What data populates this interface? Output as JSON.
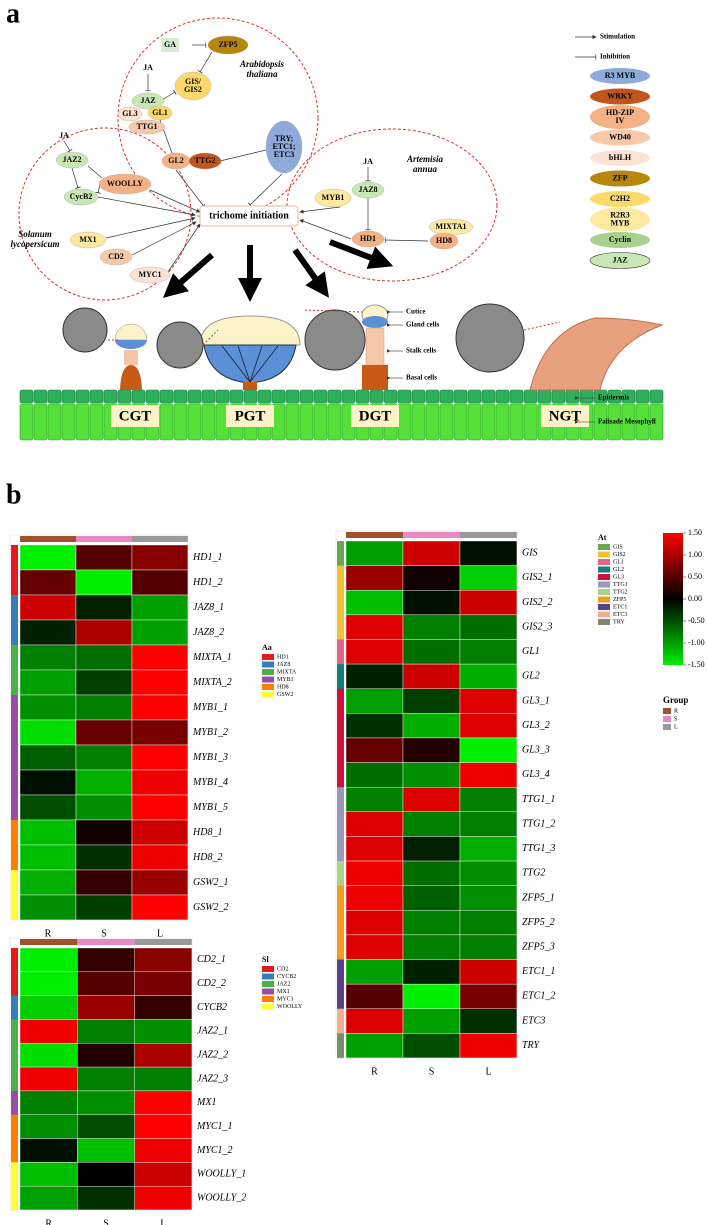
{
  "panel_a": {
    "label": "a",
    "species": [
      [
        "Arabidopsis",
        "thaliana"
      ],
      [
        "Solanum",
        "lycopersicum"
      ],
      [
        "Artemisia",
        "annua"
      ]
    ],
    "center": "trichome initiation",
    "nodes": [
      {
        "label": "GA",
        "color": "#d9ead3"
      },
      {
        "label": "ZFP5",
        "color": "#b8860b"
      },
      {
        "label": "JA",
        "color": "none"
      },
      {
        "label": [
          "GIS/",
          "GIS2"
        ],
        "color": "#fcd96a"
      },
      {
        "label": "JAZ",
        "color": "#c9e6b5"
      },
      {
        "label": "GL3",
        "color": "#fde3cf"
      },
      {
        "label": "GL1",
        "color": "#fcd96a"
      },
      {
        "label": "TTG1",
        "color": "#f7c9a8"
      },
      {
        "label": "GL2",
        "color": "#f4b183"
      },
      {
        "label": "TTG2",
        "color": "#c0561a"
      },
      {
        "label": [
          "TRY;",
          "ETC1;",
          "ETC3"
        ],
        "color": "#8eaadb"
      },
      {
        "label": "JA",
        "color": "none"
      },
      {
        "label": "JAZ2",
        "color": "#c9e6b5"
      },
      {
        "label": "WOOLLY",
        "color": "#f4b183"
      },
      {
        "label": "CycB2",
        "color": "#c9e6b5"
      },
      {
        "label": "MX1",
        "color": "#fde9a0"
      },
      {
        "label": "CD2",
        "color": "#f7c9a8"
      },
      {
        "label": "MYC1",
        "color": "#fde3d6"
      },
      {
        "label": "JA",
        "color": "none"
      },
      {
        "label": "JAZ8",
        "color": "#c9e6b5"
      },
      {
        "label": "MYB1",
        "color": "#fde9a0"
      },
      {
        "label": "MIXTA1",
        "color": "#fde9a0"
      },
      {
        "label": "HD1",
        "color": "#f4b183"
      },
      {
        "label": "HD8",
        "color": "#f4b183"
      }
    ],
    "legend": {
      "arrows": [
        "Stimulation",
        "Inhibition"
      ],
      "families": [
        {
          "name": [
            "R3 MYB"
          ],
          "color": "#8eaadb"
        },
        {
          "name": [
            "WRKY"
          ],
          "color": "#c0561a"
        },
        {
          "name": [
            "HD-ZIP",
            "IV"
          ],
          "color": "#f4b183"
        },
        {
          "name": [
            "WD40"
          ],
          "color": "#f7c9a8"
        },
        {
          "name": [
            "bHLH"
          ],
          "color": "#fde3d6"
        },
        {
          "name": [
            "ZFP"
          ],
          "color": "#b8860b"
        },
        {
          "name": [
            "C2H2"
          ],
          "color": "#fcd96a"
        },
        {
          "name": [
            "R2R3",
            "MYB"
          ],
          "color": "#fde9a0"
        },
        {
          "name": [
            "Cyclin"
          ],
          "color": "#a9d18e"
        },
        {
          "name": [
            "JAZ"
          ],
          "color": "#c9e6b5"
        }
      ]
    },
    "trichome_types": [
      "CGT",
      "PGT",
      "DGT",
      "NGT"
    ],
    "structures": [
      "Cutice",
      "Gland cells",
      "Stalk cells",
      "Basal cells"
    ],
    "layers": [
      "Epidermis",
      "Palisade Mesophyll"
    ]
  },
  "panel_b": {
    "label": "b",
    "group_legend": {
      "title": "Group",
      "items": [
        {
          "name": "R",
          "color": "#a0522d"
        },
        {
          "name": "S",
          "color": "#e78ac3"
        },
        {
          "name": "L",
          "color": "#999999"
        }
      ]
    },
    "colorbar": {
      "range": [
        -1.5,
        1.5
      ],
      "ticks": [
        {
          "value": 1.5,
          "label": "1.50"
        },
        {
          "value": 1,
          "label": "1.00"
        },
        {
          "value": 0.5,
          "label": "0.50"
        },
        {
          "value": 0,
          "label": "0.00"
        },
        {
          "value": -0.5,
          "label": "-0.50"
        },
        {
          "value": -1,
          "label": "-1.00"
        },
        {
          "value": -1.5,
          "label": "-1.50"
        }
      ]
    },
    "heatmaps": [
      {
        "legend_title": "Aa",
        "columns": [
          "R",
          "S",
          "L"
        ],
        "groups": [
          {
            "name": "HD1",
            "color": "#e41a1c"
          },
          {
            "name": "JAZ8",
            "color": "#377eb8"
          },
          {
            "name": "MIXTA",
            "color": "#4daf4a"
          },
          {
            "name": "MYB1",
            "color": "#984ea3"
          },
          {
            "name": "HD8",
            "color": "#ff7f00"
          },
          {
            "name": "GSW2",
            "color": "#ffff33"
          }
        ],
        "rows": [
          {
            "label": "HD1_1",
            "group": "HD1",
            "values": [
              -1.5,
              0.5,
              0.8
            ]
          },
          {
            "label": "HD1_2",
            "group": "HD1",
            "values": [
              0.6,
              -1.5,
              0.5
            ]
          },
          {
            "label": "JAZ8_1",
            "group": "JAZ8",
            "values": [
              1.2,
              -0.2,
              -1.0
            ]
          },
          {
            "label": "JAZ8_2",
            "group": "JAZ8",
            "values": [
              -0.2,
              1.0,
              -1.0
            ]
          },
          {
            "label": "MIXTA_1",
            "group": "MIXTA",
            "values": [
              -0.8,
              -0.7,
              1.5
            ]
          },
          {
            "label": "MIXTA_2",
            "group": "MIXTA",
            "values": [
              -1.0,
              -0.4,
              1.5
            ]
          },
          {
            "label": "MYB1_1",
            "group": "MYB1",
            "values": [
              -0.9,
              -0.8,
              1.5
            ]
          },
          {
            "label": "MYB1_2",
            "group": "MYB1",
            "values": [
              -1.4,
              0.6,
              0.7
            ]
          },
          {
            "label": "MYB1_3",
            "group": "MYB1",
            "values": [
              -0.6,
              -0.8,
              1.5
            ]
          },
          {
            "label": "MYB1_4",
            "group": "MYB1",
            "values": [
              -0.1,
              -1.1,
              1.4
            ]
          },
          {
            "label": "MYB1_5",
            "group": "MYB1",
            "values": [
              -0.5,
              -0.9,
              1.5
            ]
          },
          {
            "label": "HD8_1",
            "group": "HD8",
            "values": [
              -1.2,
              0.1,
              1.2
            ]
          },
          {
            "label": "HD8_2",
            "group": "HD8",
            "values": [
              -1.2,
              -0.3,
              1.4
            ]
          },
          {
            "label": "GSW2_1",
            "group": "GSW2",
            "values": [
              -1.1,
              0.3,
              0.9
            ]
          },
          {
            "label": "GSW2_2",
            "group": "GSW2",
            "values": [
              -0.9,
              -0.4,
              1.5
            ]
          }
        ]
      },
      {
        "legend_title": "Sl",
        "columns": [
          "R",
          "S",
          "L"
        ],
        "groups": [
          {
            "name": "CD2",
            "color": "#e41a1c"
          },
          {
            "name": "CYCB2",
            "color": "#377eb8"
          },
          {
            "name": "JAZ2",
            "color": "#4daf4a"
          },
          {
            "name": "MX1",
            "color": "#984ea3"
          },
          {
            "name": "MYC1",
            "color": "#ff7f00"
          },
          {
            "name": "WOOLLY",
            "color": "#ffff33"
          }
        ],
        "rows": [
          {
            "label": "CD2_1",
            "group": "CD2",
            "values": [
              -1.5,
              0.3,
              0.8
            ]
          },
          {
            "label": "CD2_2",
            "group": "CD2",
            "values": [
              -1.5,
              0.5,
              0.7
            ]
          },
          {
            "label": "CYCB2",
            "group": "CYCB2",
            "values": [
              -1.3,
              0.9,
              0.3
            ]
          },
          {
            "label": "JAZ2_1",
            "group": "JAZ2",
            "values": [
              1.4,
              -0.8,
              -0.9
            ]
          },
          {
            "label": "JAZ2_2",
            "group": "JAZ2",
            "values": [
              -1.4,
              0.2,
              1.0
            ]
          },
          {
            "label": "JAZ2_3",
            "group": "JAZ2",
            "values": [
              1.4,
              -0.8,
              -0.8
            ]
          },
          {
            "label": "MX1",
            "group": "MX1",
            "values": [
              -0.8,
              -0.9,
              1.5
            ]
          },
          {
            "label": "MYC1_1",
            "group": "MYC1",
            "values": [
              -0.9,
              -0.5,
              1.5
            ]
          },
          {
            "label": "MYC1_2",
            "group": "MYC1",
            "values": [
              -0.1,
              -1.2,
              1.4
            ]
          },
          {
            "label": "WOOLLY_1",
            "group": "WOOLLY",
            "values": [
              -1.2,
              0.0,
              1.2
            ]
          },
          {
            "label": "WOOLLY_2",
            "group": "WOOLLY",
            "values": [
              -1.0,
              -0.3,
              1.4
            ]
          }
        ]
      },
      {
        "legend_title": "At",
        "columns": [
          "R",
          "S",
          "L"
        ],
        "groups": [
          {
            "name": "GIS",
            "color": "#6aa84f"
          },
          {
            "name": "GIS2",
            "color": "#f1c232"
          },
          {
            "name": "GL1",
            "color": "#e06688"
          },
          {
            "name": "GL2",
            "color": "#138078"
          },
          {
            "name": "GL3",
            "color": "#d0103a"
          },
          {
            "name": "TTG1",
            "color": "#9a98b5"
          },
          {
            "name": "TTG2",
            "color": "#a7d38a"
          },
          {
            "name": "ZFP5",
            "color": "#f39c1f"
          },
          {
            "name": "ETC1",
            "color": "#5b3f8a"
          },
          {
            "name": "ETC3",
            "color": "#f4b08e"
          },
          {
            "name": "TRY",
            "color": "#7b8a70"
          }
        ],
        "rows": [
          {
            "label": "GIS",
            "group": "GIS",
            "values": [
              -1.0,
              1.2,
              -0.1
            ]
          },
          {
            "label": "GIS2_1",
            "group": "GIS2",
            "values": [
              0.9,
              0.1,
              -1.3
            ]
          },
          {
            "label": "GIS2_2",
            "group": "GIS2",
            "values": [
              -1.2,
              -0.1,
              1.2
            ]
          },
          {
            "label": "GIS2_3",
            "group": "GIS2",
            "values": [
              1.3,
              -0.8,
              -0.7
            ]
          },
          {
            "label": "GL1",
            "group": "GL1",
            "values": [
              1.3,
              -0.7,
              -0.8
            ]
          },
          {
            "label": "GL2",
            "group": "GL2",
            "values": [
              -0.2,
              1.2,
              -1.1
            ]
          },
          {
            "label": "GL3_1",
            "group": "GL3",
            "values": [
              -1.0,
              -0.4,
              1.3
            ]
          },
          {
            "label": "GL3_2",
            "group": "GL3",
            "values": [
              -0.3,
              -1.1,
              1.3
            ]
          },
          {
            "label": "GL3_3",
            "group": "GL3",
            "values": [
              0.6,
              0.2,
              -1.5
            ]
          },
          {
            "label": "GL3_4",
            "group": "GL3",
            "values": [
              -0.7,
              -0.9,
              1.4
            ]
          },
          {
            "label": "TTG1_1",
            "group": "TTG1",
            "values": [
              -0.8,
              1.3,
              -0.8
            ]
          },
          {
            "label": "TTG1_2",
            "group": "TTG1",
            "values": [
              1.3,
              -0.8,
              -0.8
            ]
          },
          {
            "label": "TTG1_3",
            "group": "TTG1",
            "values": [
              1.3,
              -0.2,
              -1.1
            ]
          },
          {
            "label": "TTG2",
            "group": "TTG2",
            "values": [
              1.4,
              -0.7,
              -0.9
            ]
          },
          {
            "label": "ZFP5_1",
            "group": "ZFP5",
            "values": [
              1.4,
              -0.6,
              -0.9
            ]
          },
          {
            "label": "ZFP5_2",
            "group": "ZFP5",
            "values": [
              1.3,
              -0.8,
              -0.8
            ]
          },
          {
            "label": "ZFP5_3",
            "group": "ZFP5",
            "values": [
              1.3,
              -0.8,
              -0.8
            ]
          },
          {
            "label": "ETC1_1",
            "group": "ETC1",
            "values": [
              -1.0,
              -0.2,
              1.2
            ]
          },
          {
            "label": "ETC1_2",
            "group": "ETC1",
            "values": [
              0.5,
              -1.5,
              0.7
            ]
          },
          {
            "label": "ETC3",
            "group": "ETC3",
            "values": [
              1.3,
              -1.0,
              -0.3
            ]
          },
          {
            "label": "TRY",
            "group": "TRY",
            "values": [
              -1.0,
              -0.5,
              1.4
            ]
          }
        ]
      }
    ]
  }
}
